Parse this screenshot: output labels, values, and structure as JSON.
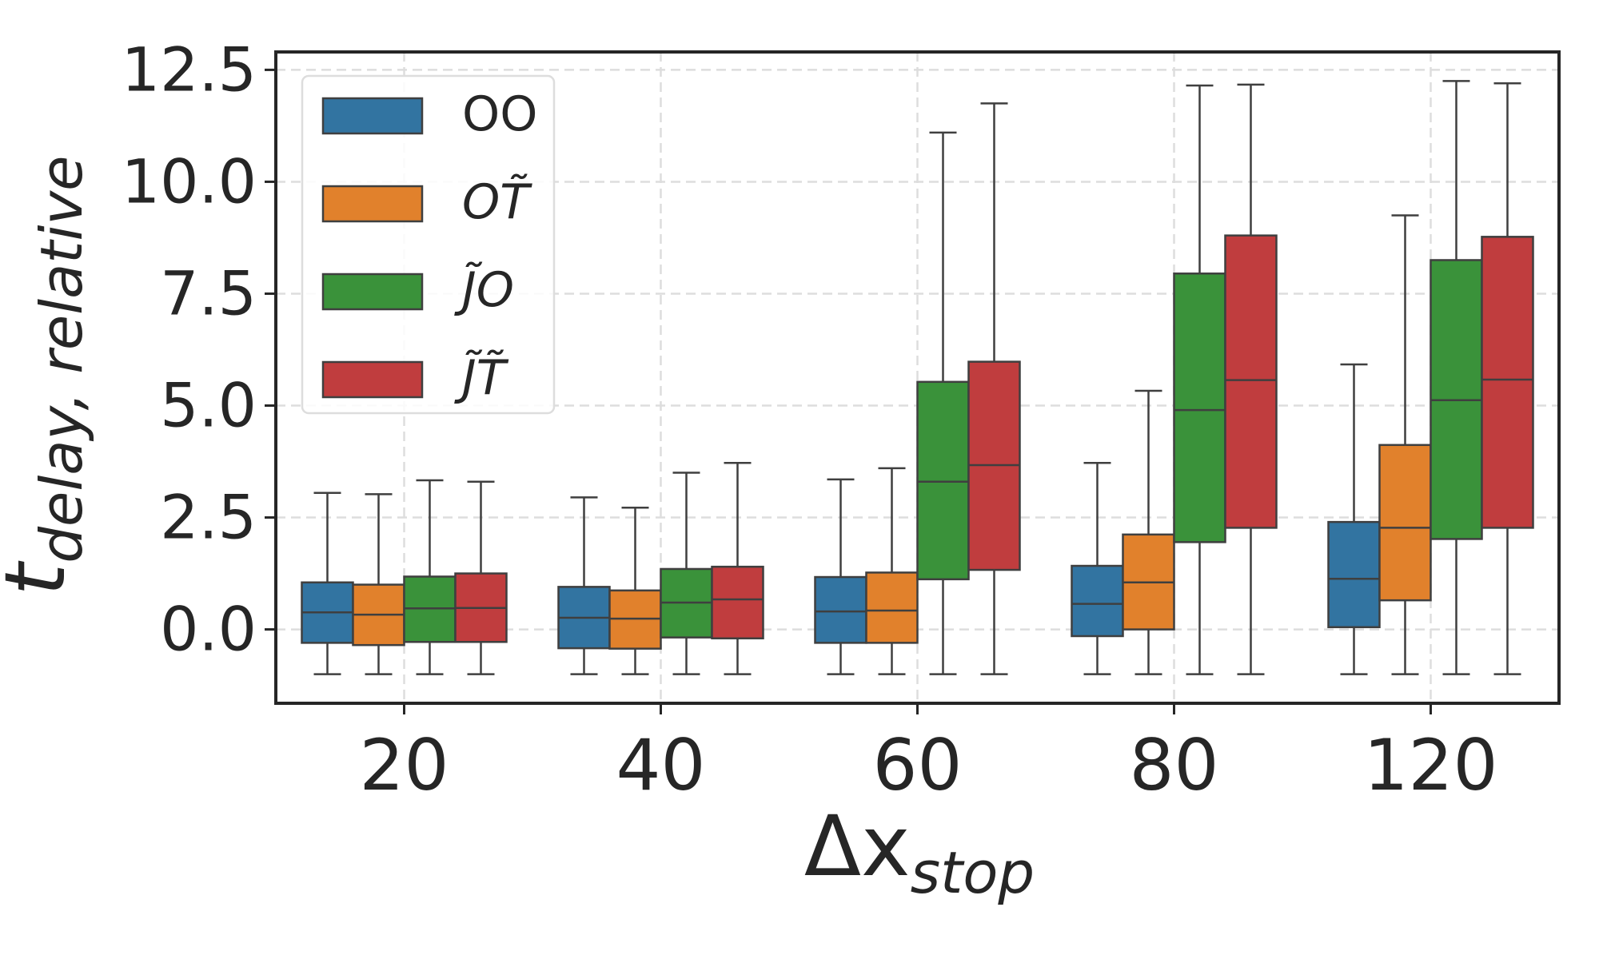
{
  "chart_data": {
    "type": "box",
    "xlabel": {
      "base": "Δx",
      "sub": "stop"
    },
    "ylabel": {
      "base": "t",
      "sub": "delay, relative"
    },
    "categories": [
      "20",
      "40",
      "60",
      "80",
      "120"
    ],
    "yticks": [
      "0.0",
      "2.5",
      "5.0",
      "7.5",
      "10.0",
      "12.5"
    ],
    "ylim": [
      -1.65,
      12.9
    ],
    "grid": true,
    "legend_position": "top-left",
    "series": [
      {
        "name": "OO",
        "color": "#3274a1",
        "boxes": [
          {
            "whisker_low": -1.0,
            "q1": -0.3,
            "median": 0.38,
            "q3": 1.05,
            "whisker_high": 3.05
          },
          {
            "whisker_low": -1.0,
            "q1": -0.42,
            "median": 0.26,
            "q3": 0.95,
            "whisker_high": 2.95
          },
          {
            "whisker_low": -1.0,
            "q1": -0.3,
            "median": 0.4,
            "q3": 1.17,
            "whisker_high": 3.35
          },
          {
            "whisker_low": -1.0,
            "q1": -0.15,
            "median": 0.57,
            "q3": 1.42,
            "whisker_high": 3.72
          },
          {
            "whisker_low": -1.0,
            "q1": 0.05,
            "median": 1.13,
            "q3": 2.4,
            "whisker_high": 5.92
          }
        ]
      },
      {
        "name": "OT̃",
        "color": "#e1812c",
        "boxes": [
          {
            "whisker_low": -1.0,
            "q1": -0.35,
            "median": 0.33,
            "q3": 1.0,
            "whisker_high": 3.02
          },
          {
            "whisker_low": -1.0,
            "q1": -0.43,
            "median": 0.24,
            "q3": 0.87,
            "whisker_high": 2.72
          },
          {
            "whisker_low": -1.0,
            "q1": -0.3,
            "median": 0.42,
            "q3": 1.27,
            "whisker_high": 3.6
          },
          {
            "whisker_low": -1.0,
            "q1": 0.0,
            "median": 1.05,
            "q3": 2.12,
            "whisker_high": 5.33
          },
          {
            "whisker_low": -1.0,
            "q1": 0.65,
            "median": 2.27,
            "q3": 4.12,
            "whisker_high": 9.25
          }
        ]
      },
      {
        "name": "J̃O",
        "color": "#3a923a",
        "boxes": [
          {
            "whisker_low": -1.0,
            "q1": -0.28,
            "median": 0.47,
            "q3": 1.18,
            "whisker_high": 3.33
          },
          {
            "whisker_low": -1.0,
            "q1": -0.18,
            "median": 0.6,
            "q3": 1.35,
            "whisker_high": 3.5
          },
          {
            "whisker_low": -1.0,
            "q1": 1.12,
            "median": 3.3,
            "q3": 5.53,
            "whisker_high": 11.1
          },
          {
            "whisker_low": -1.0,
            "q1": 1.95,
            "median": 4.9,
            "q3": 7.95,
            "whisker_high": 12.15
          },
          {
            "whisker_low": -1.0,
            "q1": 2.02,
            "median": 5.12,
            "q3": 8.25,
            "whisker_high": 12.25
          }
        ]
      },
      {
        "name": "J̃T̃",
        "color": "#c03d3e",
        "boxes": [
          {
            "whisker_low": -1.0,
            "q1": -0.28,
            "median": 0.48,
            "q3": 1.25,
            "whisker_high": 3.3
          },
          {
            "whisker_low": -1.0,
            "q1": -0.2,
            "median": 0.67,
            "q3": 1.4,
            "whisker_high": 3.72
          },
          {
            "whisker_low": -1.0,
            "q1": 1.33,
            "median": 3.67,
            "q3": 5.98,
            "whisker_high": 11.75
          },
          {
            "whisker_low": -1.0,
            "q1": 2.27,
            "median": 5.57,
            "q3": 8.8,
            "whisker_high": 12.17
          },
          {
            "whisker_low": -1.0,
            "q1": 2.27,
            "median": 5.58,
            "q3": 8.77,
            "whisker_high": 12.2
          }
        ]
      }
    ]
  }
}
